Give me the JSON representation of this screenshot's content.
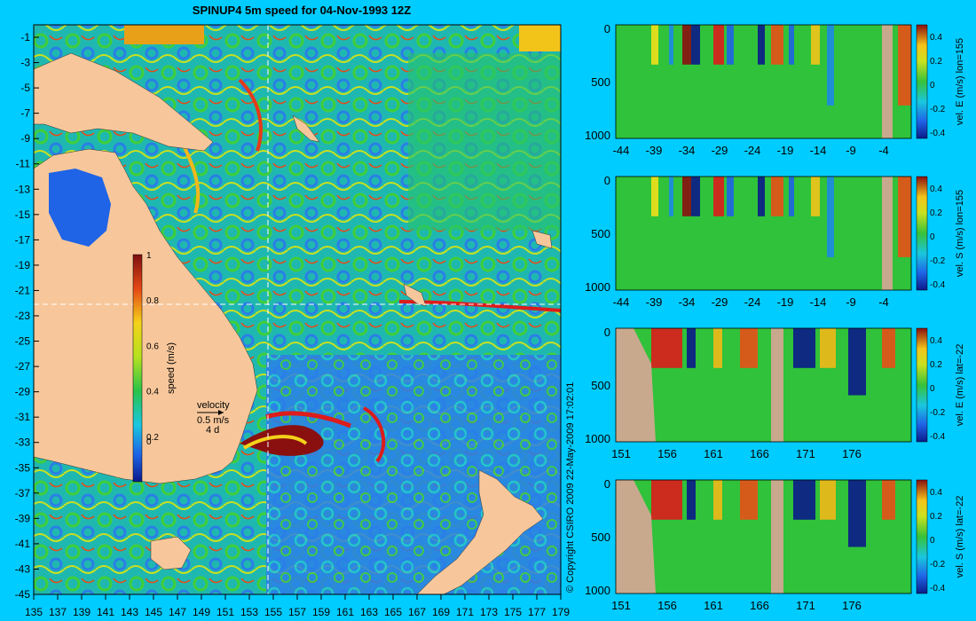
{
  "title": "SPINUP4 5m speed for 04-Nov-1993 12Z",
  "copyright": "© Copyright CSIRO 2009   22-May-2009 17:02:01",
  "colors": {
    "background": "#00ccff",
    "land": "#f7c79b",
    "ocean_low": "#2a6be8",
    "ocean_mid": "#19d8b0",
    "ocean_green": "#34c22e",
    "ocean_yellow": "#f2e11a",
    "ocean_red": "#dd1c1c",
    "ocean_dark": "#7a1010",
    "bathymetry": "#c8a98d"
  },
  "map": {
    "lon_labels": [
      "135",
      "137",
      "139",
      "141",
      "143",
      "145",
      "147",
      "149",
      "151",
      "153",
      "155",
      "157",
      "159",
      "161",
      "163",
      "165",
      "167",
      "169",
      "171",
      "173",
      "175",
      "177",
      "179"
    ],
    "lat_labels": [
      "-1",
      "-3",
      "-5",
      "-7",
      "-9",
      "-11",
      "-13",
      "-15",
      "-17",
      "-19",
      "-21",
      "-23",
      "-25",
      "-27",
      "-29",
      "-31",
      "-33",
      "-35",
      "-37",
      "-39",
      "-41",
      "-43",
      "-45"
    ],
    "colorbar": {
      "label": "speed (m/s)",
      "ticks": [
        "1",
        "0.8",
        "0.6",
        "0.4",
        "0.2",
        "0"
      ]
    },
    "velocity_legend": {
      "title": "velocity",
      "value": "0.5 m/s",
      "duration": "4 d"
    }
  },
  "sections": [
    {
      "x_labels": [
        "-44",
        "-39",
        "-34",
        "-29",
        "-24",
        "-19",
        "-14",
        "-9",
        "-4"
      ],
      "y_labels": [
        "0",
        "500",
        "1000"
      ],
      "cbar_label": "vel. E (m/s) lon=155",
      "cbar_ticks": [
        "0.4",
        "0.2",
        "0",
        "-0.2",
        "-0.4"
      ]
    },
    {
      "x_labels": [
        "-44",
        "-39",
        "-34",
        "-29",
        "-24",
        "-19",
        "-14",
        "-9",
        "-4"
      ],
      "y_labels": [
        "0",
        "500",
        "1000"
      ],
      "cbar_label": "vel. S (m/s) lon=155",
      "cbar_ticks": [
        "0.4",
        "0.2",
        "0",
        "-0.2",
        "-0.4"
      ]
    },
    {
      "x_labels": [
        "151",
        "156",
        "161",
        "166",
        "171",
        "176"
      ],
      "y_labels": [
        "0",
        "500",
        "1000"
      ],
      "cbar_label": "vel. E (m/s) lat=-22",
      "cbar_ticks": [
        "0.4",
        "0.2",
        "0",
        "-0.2",
        "-0.4"
      ]
    },
    {
      "x_labels": [
        "151",
        "156",
        "161",
        "166",
        "171",
        "176"
      ],
      "y_labels": [
        "0",
        "500",
        "1000"
      ],
      "cbar_label": "vel. S (m/s) lat=-22",
      "cbar_ticks": [
        "0.4",
        "0.2",
        "0",
        "-0.2",
        "-0.4"
      ]
    }
  ]
}
